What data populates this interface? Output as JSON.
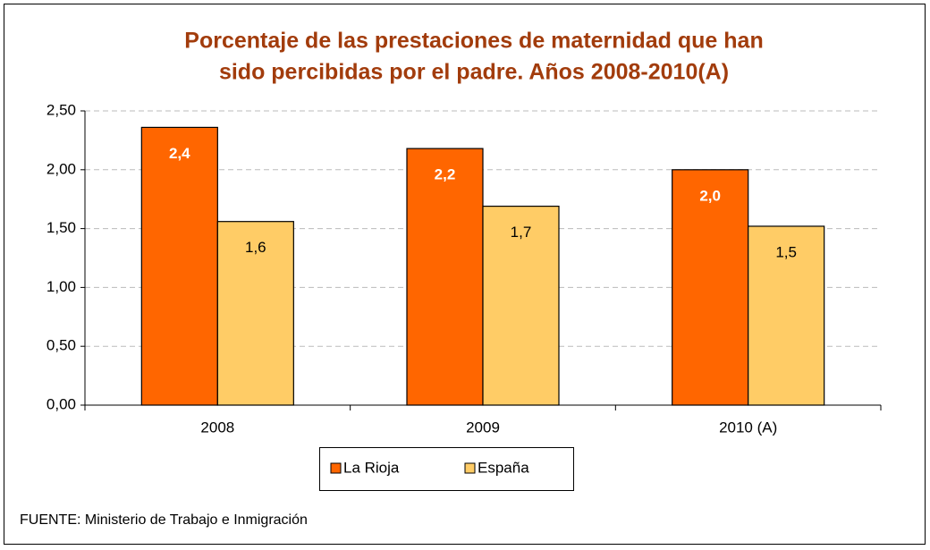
{
  "chart_data": {
    "type": "bar",
    "title": [
      "Porcentaje de las prestaciones de maternidad que han",
      "sido percibidas por el padre. Años 2008-2010(A)"
    ],
    "categories": [
      "2008",
      "2009",
      "2010 (A)"
    ],
    "series": [
      {
        "name": "La Rioja",
        "color": "#ff6600",
        "values": [
          2.36,
          2.18,
          2.0
        ],
        "value_labels": [
          "2,4",
          "2,2",
          "2,0"
        ]
      },
      {
        "name": "España",
        "color": "#ffcc66",
        "values": [
          1.56,
          1.69,
          1.52
        ],
        "value_labels": [
          "1,6",
          "1,7",
          "1,5"
        ]
      }
    ],
    "ylim": [
      0,
      2.5
    ],
    "yticks": [
      {
        "value": 0,
        "label": "0,00"
      },
      {
        "value": 0.5,
        "label": "0,50"
      },
      {
        "value": 1,
        "label": "1,00"
      },
      {
        "value": 1.5,
        "label": "1,50"
      },
      {
        "value": 2,
        "label": "2,00"
      },
      {
        "value": 2.5,
        "label": "2,50"
      }
    ],
    "grid": true,
    "legend": "bottom",
    "source": "FUENTE: Ministerio de Trabajo e Inmigración"
  }
}
